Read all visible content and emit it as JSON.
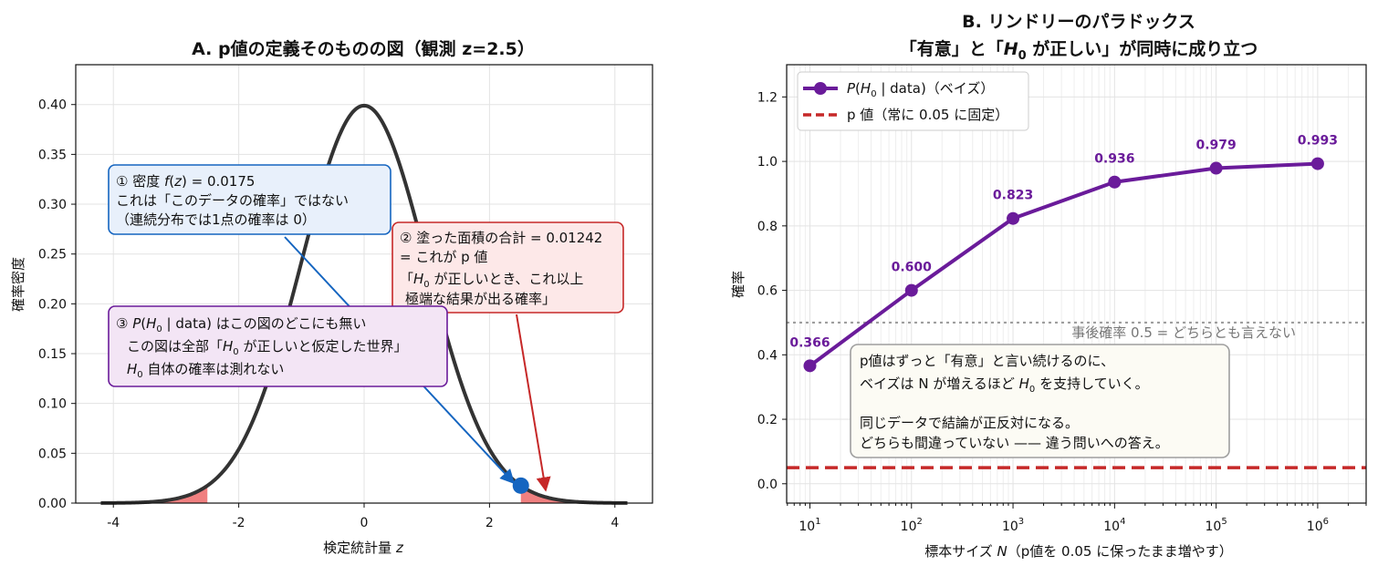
{
  "colors": {
    "curve": "#333333",
    "tail_fill": "#f08080",
    "point_blue": "#1565c0",
    "arrow_red": "#c62828",
    "purple": "#6a1b9a",
    "pvalue_red": "#c62828",
    "box1_fill": "#e8f0fb",
    "box1_edge": "#1565c0",
    "box2_fill": "#fde8e8",
    "box2_edge": "#c62828",
    "box3_fill": "#f3e5f5",
    "box3_edge": "#6a1b9a",
    "box4_fill": "#fcfbf4",
    "box4_edge": "#9e9e9e"
  },
  "chart_data": [
    {
      "type": "line",
      "title": "A. p値の定義そのものの図（観測 z=2.5）",
      "xlabel": "検定統計量 z",
      "ylabel": "確率密度",
      "xlim": [
        -4.6,
        4.6
      ],
      "ylim": [
        0,
        0.44
      ],
      "xticks": [
        -4,
        -2,
        0,
        2,
        4
      ],
      "xtick_labels": [
        "-4",
        "-2",
        "0",
        "2",
        "4"
      ],
      "yticks": [
        0,
        0.05,
        0.1,
        0.15,
        0.2,
        0.25,
        0.3,
        0.35,
        0.4
      ],
      "ytick_labels": [
        "0.00",
        "0.05",
        "0.10",
        "0.15",
        "0.20",
        "0.25",
        "0.30",
        "0.35",
        "0.40"
      ],
      "grid": true,
      "curve": {
        "distribution": "standard normal",
        "x_range": [
          -4.2,
          4.2
        ],
        "peak": 0.399
      },
      "shaded_tails": {
        "left_end": -2.5,
        "right_start": 2.5
      },
      "observed": {
        "z": 2.5,
        "density": 0.0175
      },
      "annotations": {
        "box1": [
          "① 密度 f(z) = 0.0175",
          "これは「このデータの確率」ではない",
          "（連続分布では1点の確率は 0）"
        ],
        "box2": [
          "② 塗った面積の合計 = 0.01242",
          "= これが p 値",
          "「H0 が正しいとき、これ以上",
          "極端な結果が出る確率」"
        ],
        "box3": [
          "③ P(H0 | data) はこの図のどこにも無い",
          "この図は全部「H0 が正しいと仮定した世界」",
          "H0 自体の確率は測れない"
        ]
      }
    },
    {
      "type": "line",
      "title_lines": [
        "B. リンドリーのパラドックス",
        "「有意」と「H0 が正しい」が同時に成り立つ"
      ],
      "xlabel": "標本サイズ N（p値を 0.05 に保ったまま増やす）",
      "ylabel": "確率",
      "xscale": "log",
      "xlim": [
        5.9,
        3000000
      ],
      "ylim": [
        -0.06,
        1.3
      ],
      "yticks": [
        0,
        0.2,
        0.4,
        0.6,
        0.8,
        1.0,
        1.2
      ],
      "ytick_labels": [
        "0.0",
        "0.2",
        "0.4",
        "0.6",
        "0.8",
        "1.0",
        "1.2"
      ],
      "xtick_exponents": [
        1,
        2,
        3,
        4,
        5,
        6
      ],
      "grid": true,
      "series": [
        {
          "name": "P(H0 | data)（ベイズ）",
          "x": [
            10,
            100,
            1000,
            10000,
            100000,
            1000000
          ],
          "values": [
            0.366,
            0.6,
            0.823,
            0.936,
            0.979,
            0.993
          ],
          "labels": [
            "0.366",
            "0.600",
            "0.823",
            "0.936",
            "0.979",
            "0.993"
          ]
        },
        {
          "name": "p 値（常に 0.05 に固定）",
          "constant": 0.05
        }
      ],
      "reference_line": {
        "y": 0.5,
        "label": "事後確率 0.5 = どちらとも言えない"
      },
      "legend_position": "upper-left",
      "note_lines": [
        "p値はずっと「有意」と言い続けるのに、",
        "ベイズは N が増えるほど H0 を支持していく。",
        "",
        "同じデータで結論が正反対になる。",
        "どちらも間違っていない —— 違う問いへの答え。"
      ]
    }
  ]
}
